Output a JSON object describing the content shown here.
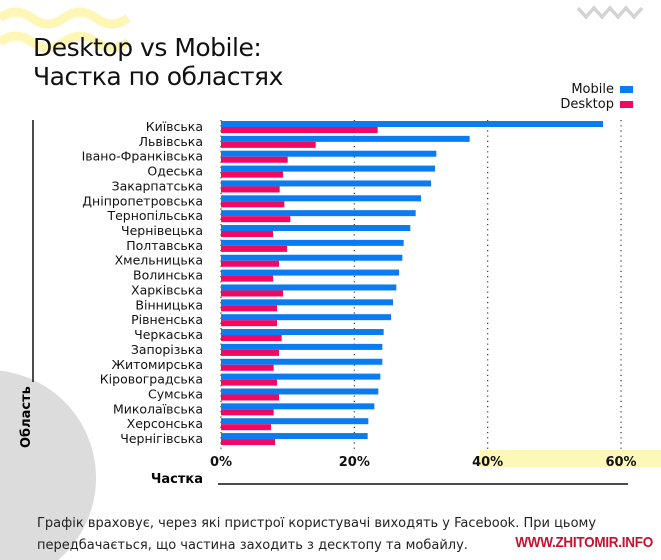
{
  "title": [
    "Desktop vs Mobile:",
    "Частка по областях"
  ],
  "legend": [
    {
      "label": "Mobile",
      "color": "#0a7cf2"
    },
    {
      "label": "Desktop",
      "color": "#f5065f"
    }
  ],
  "chart_data": {
    "type": "bar",
    "orientation": "horizontal",
    "title": "Desktop vs Mobile: Частка по областях",
    "xlabel": "Частка",
    "ylabel": "Область",
    "xlim": [
      0,
      60
    ],
    "xticks": [
      "0%",
      "20%",
      "40%",
      "60%"
    ],
    "grid": "vertical dotted",
    "legend_position": "top-right",
    "categories": [
      "Київська",
      "Львівська",
      "Івано-Франківська",
      "Одеська",
      "Закарпатська",
      "Дніпропетровська",
      "Тернопільська",
      "Чернівецька",
      "Полтавська",
      "Хмельницька",
      "Волинська",
      "Харківська",
      "Вінницька",
      "Рівненська",
      "Черкаська",
      "Запорізька",
      "Житомирська",
      "Кіровоградська",
      "Сумська",
      "Миколаївська",
      "Херсонська",
      "Чернігівська"
    ],
    "series": [
      {
        "name": "Mobile",
        "color": "#0a7cf2",
        "values": [
          57.3,
          37.3,
          32.3,
          32.1,
          31.5,
          30.0,
          29.2,
          28.4,
          27.4,
          27.2,
          26.7,
          26.3,
          25.8,
          25.5,
          24.4,
          24.2,
          24.2,
          23.9,
          23.6,
          23.0,
          22.1,
          22.0
        ]
      },
      {
        "name": "Desktop",
        "color": "#f5065f",
        "values": [
          23.5,
          14.2,
          10.0,
          9.3,
          8.8,
          9.5,
          10.4,
          7.8,
          9.9,
          8.7,
          7.8,
          9.3,
          8.4,
          8.4,
          9.1,
          8.7,
          7.9,
          8.4,
          8.7,
          7.9,
          7.5,
          8.1
        ]
      }
    ]
  },
  "footnote": [
    "Графік враховує, через які пристрої користувачі виходять у Facebook. При цьому",
    "передбачається, що частина заходить з десктопу та мобайлу."
  ],
  "watermark": "WWW.ZHITOMIR.INFO"
}
